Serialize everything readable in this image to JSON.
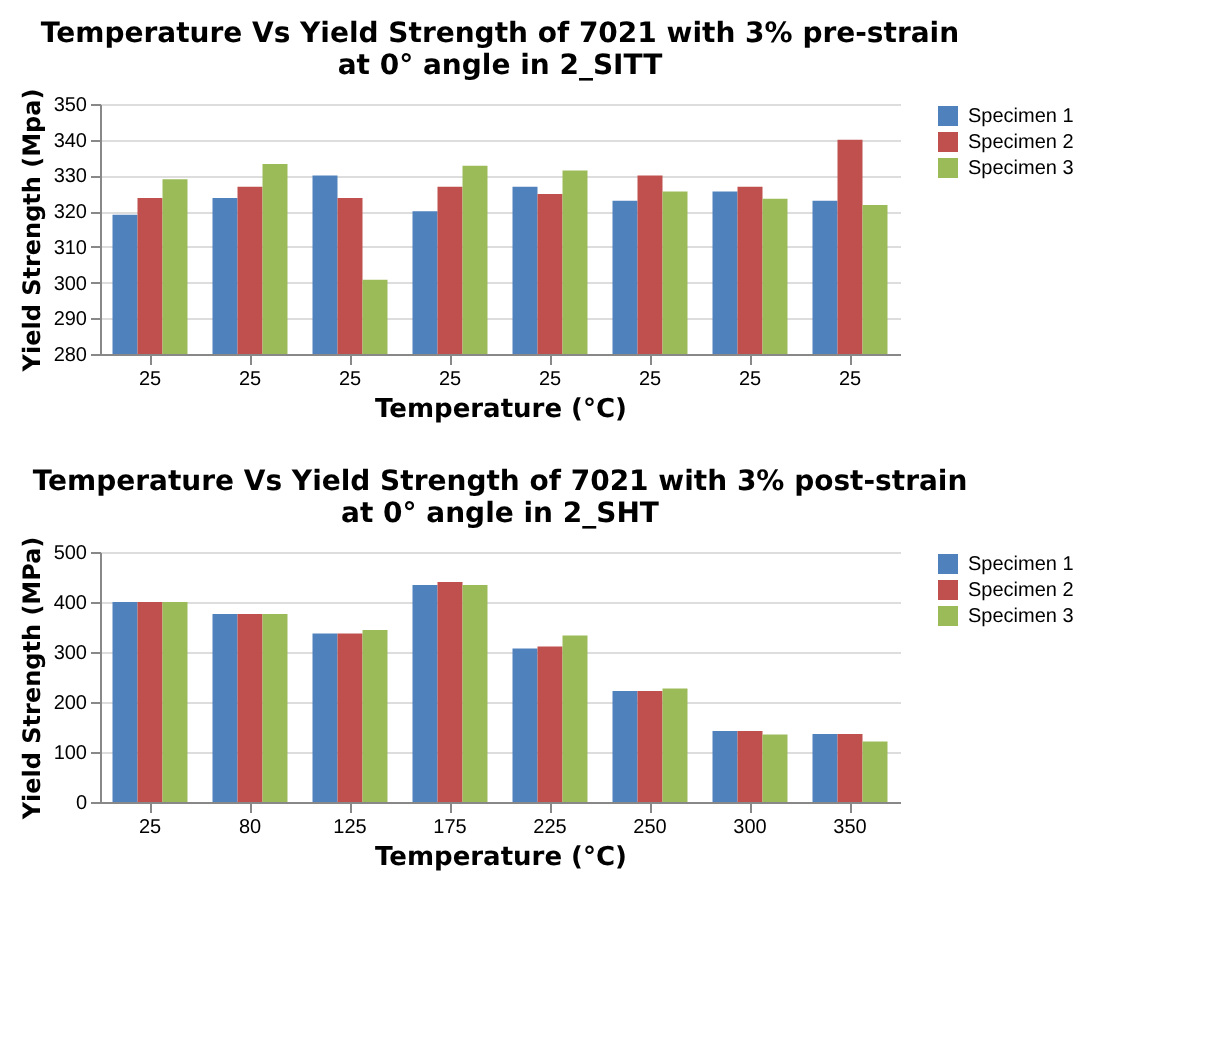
{
  "chart_data": [
    {
      "type": "bar",
      "title": [
        "Temperature Vs Yield Strength of 7021 with 3% pre-strain",
        "at 0° angle in 2_SITT"
      ],
      "xlabel": "Temperature (°C)",
      "ylabel": "Yield Strength (Mpa)",
      "categories": [
        "25",
        "25",
        "25",
        "25",
        "25",
        "25",
        "25",
        "25"
      ],
      "series": [
        {
          "name": "Specimen 1",
          "color": "#4f81bd",
          "values": [
            319,
            323.7,
            330,
            320,
            326.8,
            322.9,
            325.5,
            322.9
          ]
        },
        {
          "name": "Specimen 2",
          "color": "#c0504d",
          "values": [
            323.7,
            326.8,
            323.7,
            326.8,
            324.8,
            330,
            326.8,
            340
          ]
        },
        {
          "name": "Specimen 3",
          "color": "#9bbb59",
          "values": [
            328.9,
            333.2,
            300.8,
            332.7,
            331.4,
            325.5,
            323.5,
            321.7
          ]
        }
      ],
      "ylim": [
        280,
        350
      ],
      "yticks": [
        280,
        290,
        300,
        310,
        320,
        330,
        340,
        350
      ],
      "grid": "y",
      "legend": "right"
    },
    {
      "type": "bar",
      "title": [
        "Temperature Vs Yield Strength of 7021 with 3% post-strain",
        "at 0° angle in 2_SHT"
      ],
      "xlabel": "Temperature (°C)",
      "ylabel": "Yield Strength (MPa)",
      "categories": [
        "25",
        "80",
        "125",
        "175",
        "225",
        "250",
        "300",
        "350"
      ],
      "series": [
        {
          "name": "Specimen 1",
          "color": "#4f81bd",
          "values": [
            400,
            376,
            337,
            434,
            307,
            222,
            142,
            136
          ]
        },
        {
          "name": "Specimen 2",
          "color": "#c0504d",
          "values": [
            400,
            376,
            337,
            440,
            311,
            222,
            142,
            136
          ]
        },
        {
          "name": "Specimen 3",
          "color": "#9bbb59",
          "values": [
            400,
            376,
            344,
            434,
            333,
            227,
            135,
            121
          ]
        }
      ],
      "ylim": [
        0,
        500
      ],
      "yticks": [
        0,
        100,
        200,
        300,
        400,
        500
      ],
      "grid": "y",
      "legend": "right"
    }
  ]
}
